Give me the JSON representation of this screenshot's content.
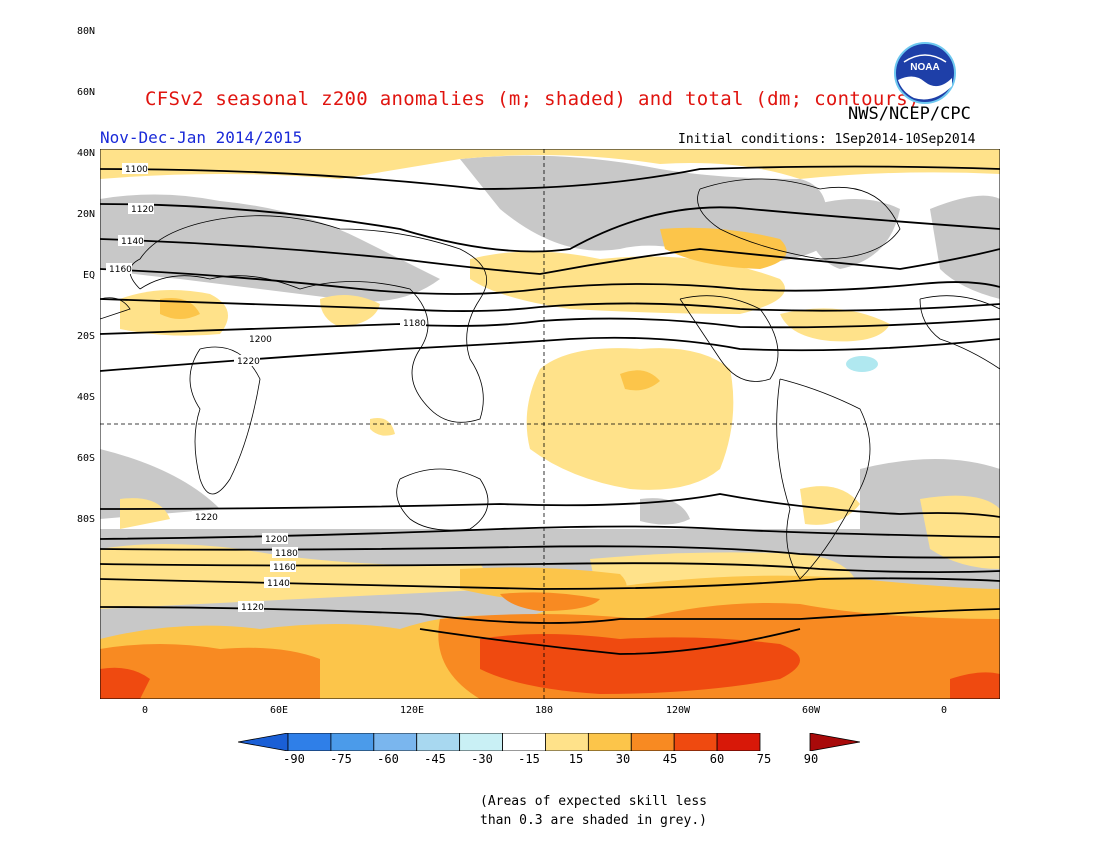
{
  "title": "CFSv2 seasonal z200 anomalies (m; shaded) and total (dm; contours)",
  "agency": "NWS/NCEP/CPC",
  "logo_text": "NOAA",
  "period": "Nov-Dec-Jan 2014/2015",
  "initial_conditions": "Initial conditions: 1Sep2014-10Sep2014",
  "lat_labels": [
    "80N",
    "60N",
    "40N",
    "20N",
    "EQ",
    "20S",
    "40S",
    "60S",
    "80S"
  ],
  "lon_labels": [
    "0",
    "60E",
    "120E",
    "180",
    "120W",
    "60W",
    "0"
  ],
  "colorbar": {
    "labels": [
      "-90",
      "-75",
      "-60",
      "-45",
      "-30",
      "-15",
      "15",
      "30",
      "45",
      "60",
      "75",
      "90"
    ],
    "colors": [
      "#1a5fd6",
      "#2f7fe8",
      "#4b9bea",
      "#7ab6ee",
      "#a8d8f0",
      "#c9f0f5",
      "#ffffff",
      "#ffe28a",
      "#fcc54a",
      "#f88a22",
      "#ef4a10",
      "#d81808",
      "#a80a0a"
    ]
  },
  "contour_labels": {
    "north": [
      "1100",
      "1120",
      "1140",
      "1160",
      "1180",
      "1200",
      "1220"
    ],
    "south": [
      "1220",
      "1200",
      "1180",
      "1160",
      "1140",
      "1120"
    ]
  },
  "colors": {
    "skill_grey": "#c8c8c8",
    "title": "#e0140f",
    "period": "#1a2ad8"
  },
  "note": [
    "(Areas of expected skill less",
    "than 0.3 are shaded in grey.)"
  ]
}
